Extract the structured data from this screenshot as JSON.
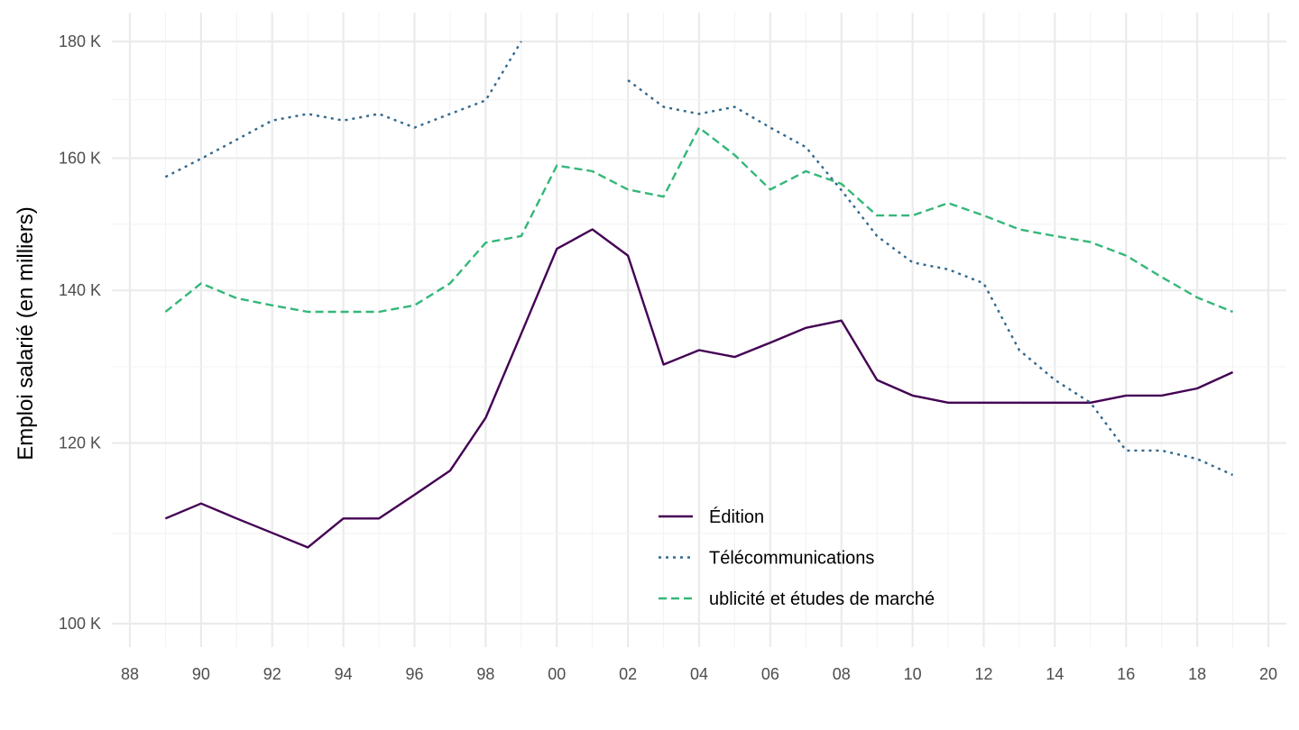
{
  "chart_data": {
    "type": "line",
    "title": "",
    "xlabel": "",
    "ylabel": "Emploi salarié (en milliers)",
    "x": [
      1989,
      1990,
      1991,
      1992,
      1993,
      1994,
      1995,
      1996,
      1997,
      1998,
      1999,
      2000,
      2001,
      2002,
      2003,
      2004,
      2005,
      2006,
      2007,
      2008,
      2009,
      2010,
      2011,
      2012,
      2013,
      2014,
      2015,
      2016,
      2017,
      2018,
      2019
    ],
    "x_ticks": [
      1988,
      1990,
      1992,
      1994,
      1996,
      1998,
      2000,
      2002,
      2004,
      2006,
      2008,
      2010,
      2012,
      2014,
      2016,
      2018,
      2020
    ],
    "x_tick_labels": [
      "88",
      "90",
      "92",
      "94",
      "96",
      "98",
      "00",
      "02",
      "04",
      "06",
      "08",
      "10",
      "12",
      "14",
      "16",
      "18",
      "20"
    ],
    "xlim": [
      1988,
      2020
    ],
    "y_ticks": [
      100,
      120,
      140,
      160,
      180
    ],
    "y_tick_labels": [
      "100 K",
      "120 K",
      "140 K",
      "160 K",
      "180 K"
    ],
    "ylim": [
      100,
      180
    ],
    "y_scale": "log",
    "grid": true,
    "legend_position": "bottom-center inside",
    "series": [
      {
        "name": "Édition",
        "color": "#440154",
        "dash": "solid",
        "values": [
          111.2,
          112.9,
          111.2,
          109.6,
          108.0,
          111.2,
          111.2,
          113.9,
          116.7,
          123.1,
          134.0,
          146.0,
          148.9,
          145.0,
          129.9,
          131.8,
          130.9,
          132.8,
          134.8,
          135.8,
          127.9,
          125.9,
          125.0,
          125.0,
          125.0,
          125.0,
          125.0,
          125.9,
          125.9,
          126.8,
          128.9
        ]
      },
      {
        "name": "Télécommunications",
        "color": "#31688e",
        "dash": "dotted",
        "values": [
          157.0,
          159.9,
          163.0,
          166.2,
          167.3,
          166.2,
          167.3,
          165.0,
          167.3,
          169.6,
          180.0,
          null,
          null,
          173.1,
          168.5,
          167.3,
          168.5,
          165.0,
          161.8,
          154.9,
          147.9,
          144.0,
          143.0,
          141.0,
          131.8,
          127.9,
          125.0,
          119.1,
          119.1,
          118.1,
          116.2
        ]
      },
      {
        "name": "ublicité et études de marché",
        "color": "#35b779",
        "dash": "dashed",
        "values": [
          137.0,
          141.0,
          138.9,
          137.9,
          137.0,
          137.0,
          137.0,
          137.9,
          141.0,
          146.9,
          147.9,
          158.8,
          157.9,
          155.0,
          153.9,
          165.0,
          160.5,
          155.0,
          157.9,
          155.9,
          151.0,
          151.0,
          152.9,
          151.0,
          148.9,
          147.9,
          147.0,
          145.0,
          141.9,
          139.0,
          137.0
        ]
      }
    ]
  }
}
